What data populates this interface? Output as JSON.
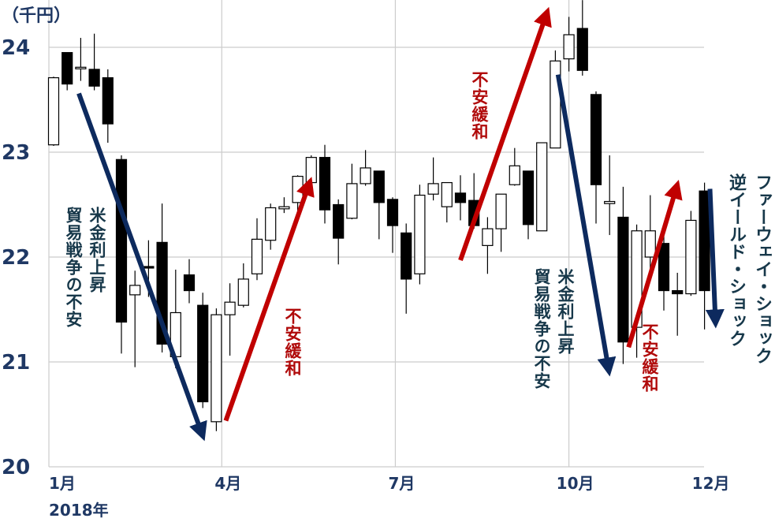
{
  "chart_data": {
    "type": "candlestick",
    "unit_label": "（千円）",
    "ylim": [
      20,
      24.45
    ],
    "yticks": [
      "20",
      "21",
      "22",
      "23",
      "24"
    ],
    "grid": true,
    "xticks": [
      {
        "label": "1月",
        "week": -0.35
      },
      {
        "label": "4月",
        "week": 12.4
      },
      {
        "label": "7月",
        "week": 25.2
      },
      {
        "label": "10月",
        "week": 38.0
      },
      {
        "label": "12月",
        "week": 48.0
      }
    ],
    "year_label": "2018年",
    "colors": {
      "up": "#ffffff",
      "down": "#000000",
      "axis_text": "#1f3864",
      "down_arrow": "#0d2a5e",
      "up_arrow": "#c00000",
      "grid": "#cccccc"
    },
    "candles": [
      {
        "o": 23.07,
        "h": 23.72,
        "l": 23.06,
        "c": 23.71
      },
      {
        "o": 23.95,
        "h": 23.95,
        "l": 23.59,
        "c": 23.65
      },
      {
        "o": 23.8,
        "h": 24.09,
        "l": 23.68,
        "c": 23.81
      },
      {
        "o": 23.79,
        "h": 24.13,
        "l": 23.59,
        "c": 23.63
      },
      {
        "o": 23.71,
        "h": 23.79,
        "l": 23.09,
        "c": 23.27
      },
      {
        "o": 22.93,
        "h": 22.97,
        "l": 21.08,
        "c": 21.38
      },
      {
        "o": 21.64,
        "h": 21.87,
        "l": 20.95,
        "c": 21.73
      },
      {
        "o": 21.91,
        "h": 22.16,
        "l": 21.62,
        "c": 21.9
      },
      {
        "o": 22.14,
        "h": 22.51,
        "l": 21.09,
        "c": 21.17
      },
      {
        "o": 21.05,
        "h": 21.88,
        "l": 20.94,
        "c": 21.47
      },
      {
        "o": 21.83,
        "h": 21.98,
        "l": 21.56,
        "c": 21.68
      },
      {
        "o": 21.54,
        "h": 21.66,
        "l": 20.56,
        "c": 20.62
      },
      {
        "o": 20.43,
        "h": 21.51,
        "l": 20.34,
        "c": 21.45
      },
      {
        "o": 21.45,
        "h": 21.75,
        "l": 21.06,
        "c": 21.57
      },
      {
        "o": 21.54,
        "h": 21.94,
        "l": 21.52,
        "c": 21.79
      },
      {
        "o": 21.84,
        "h": 22.37,
        "l": 21.78,
        "c": 22.17
      },
      {
        "o": 22.16,
        "h": 22.51,
        "l": 22.07,
        "c": 22.47
      },
      {
        "o": 22.46,
        "h": 22.57,
        "l": 22.42,
        "c": 22.48
      },
      {
        "o": 22.52,
        "h": 22.78,
        "l": 22.35,
        "c": 22.77
      },
      {
        "o": 22.71,
        "h": 22.97,
        "l": 22.69,
        "c": 22.95
      },
      {
        "o": 22.95,
        "h": 23.07,
        "l": 22.32,
        "c": 22.45
      },
      {
        "o": 22.5,
        "h": 22.55,
        "l": 21.93,
        "c": 22.18
      },
      {
        "o": 22.37,
        "h": 22.89,
        "l": 22.36,
        "c": 22.7
      },
      {
        "o": 22.7,
        "h": 23.02,
        "l": 22.68,
        "c": 22.85
      },
      {
        "o": 22.82,
        "h": 22.82,
        "l": 22.17,
        "c": 22.52
      },
      {
        "o": 22.55,
        "h": 22.57,
        "l": 22.04,
        "c": 22.3
      },
      {
        "o": 22.23,
        "h": 22.32,
        "l": 21.46,
        "c": 21.79
      },
      {
        "o": 21.84,
        "h": 22.69,
        "l": 21.74,
        "c": 22.59
      },
      {
        "o": 22.6,
        "h": 22.95,
        "l": 22.54,
        "c": 22.7
      },
      {
        "o": 22.48,
        "h": 22.71,
        "l": 22.33,
        "c": 22.71
      },
      {
        "o": 22.61,
        "h": 22.78,
        "l": 22.35,
        "c": 22.52
      },
      {
        "o": 22.54,
        "h": 22.8,
        "l": 22.27,
        "c": 22.3
      },
      {
        "o": 22.11,
        "h": 22.38,
        "l": 21.84,
        "c": 22.27
      },
      {
        "o": 22.27,
        "h": 22.6,
        "l": 22.05,
        "c": 22.6
      },
      {
        "o": 22.69,
        "h": 23.04,
        "l": 22.68,
        "c": 22.87
      },
      {
        "o": 22.82,
        "h": 22.82,
        "l": 22.17,
        "c": 22.31
      },
      {
        "o": 22.25,
        "h": 23.09,
        "l": 22.25,
        "c": 23.09
      },
      {
        "o": 23.04,
        "h": 23.97,
        "l": 23.04,
        "c": 23.87
      },
      {
        "o": 23.89,
        "h": 24.29,
        "l": 23.77,
        "c": 24.12
      },
      {
        "o": 24.18,
        "h": 24.45,
        "l": 23.73,
        "c": 23.78
      },
      {
        "o": 23.55,
        "h": 23.58,
        "l": 22.32,
        "c": 22.69
      },
      {
        "o": 22.51,
        "h": 22.97,
        "l": 22.21,
        "c": 22.53
      },
      {
        "o": 22.38,
        "h": 22.67,
        "l": 20.98,
        "c": 21.19
      },
      {
        "o": 21.33,
        "h": 22.31,
        "l": 21.04,
        "c": 22.25
      },
      {
        "o": 22.0,
        "h": 22.59,
        "l": 21.87,
        "c": 22.25
      },
      {
        "o": 22.13,
        "h": 22.32,
        "l": 21.49,
        "c": 21.68
      },
      {
        "o": 21.68,
        "h": 21.85,
        "l": 21.25,
        "c": 21.65
      },
      {
        "o": 21.65,
        "h": 22.44,
        "l": 21.63,
        "c": 22.35
      },
      {
        "o": 22.63,
        "h": 22.71,
        "l": 21.31,
        "c": 21.68
      }
    ],
    "trend_arrows": [
      {
        "dir": "down",
        "from": [
          1.86,
          23.56
        ],
        "to": [
          10.9,
          20.33
        ]
      },
      {
        "dir": "up",
        "from": [
          12.7,
          20.44
        ],
        "to": [
          18.8,
          22.68
        ]
      },
      {
        "dir": "up",
        "from": [
          30.0,
          21.97
        ],
        "to": [
          36.3,
          24.3
        ]
      },
      {
        "dir": "down",
        "from": [
          37.2,
          23.74
        ],
        "to": [
          40.9,
          20.95
        ]
      },
      {
        "dir": "up",
        "from": [
          42.4,
          21.14
        ],
        "to": [
          45.9,
          22.65
        ]
      },
      {
        "dir": "down",
        "from": [
          48.4,
          22.65
        ],
        "to": [
          48.8,
          21.41
        ]
      }
    ],
    "annotations": {
      "rate_rise_1": "米金利上昇",
      "trade_war_1": "貿易戦争の不安",
      "relief_1": "不安緩和",
      "relief_2": "不安緩和",
      "rate_rise_2": "米金利上昇",
      "trade_war_2": "貿易戦争の不安",
      "relief_3": "不安緩和",
      "huawei_shock": "ファーウェイ・ショック",
      "inverted_yield_shock": "逆イールド・ショック"
    }
  }
}
